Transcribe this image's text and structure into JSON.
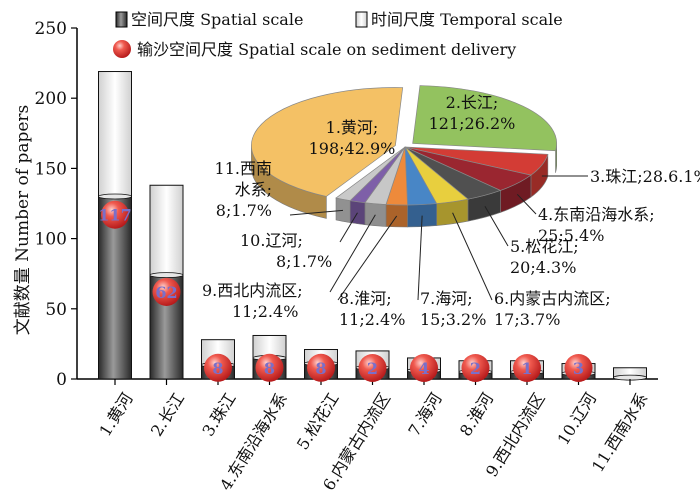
{
  "chart_data": [
    {
      "type": "bar",
      "stacked": true,
      "ylabel": "文献数量 Number of papers",
      "ylim": [
        0,
        250
      ],
      "yticks": [
        0,
        50,
        100,
        150,
        200,
        250
      ],
      "categories": [
        "1.黄河",
        "2.长江",
        "3.珠江",
        "4.东南沿海水系",
        "5.松花江",
        "6.内蒙古内流区",
        "7.海河",
        "8.淮河",
        "9.西北内流区",
        "10.辽河",
        "11.西南水系"
      ],
      "series": [
        {
          "name": "空间尺度 Spatial scale",
          "color": "#333333",
          "values": [
            130,
            74,
            10,
            15,
            11,
            8,
            6,
            5,
            5,
            4,
            1
          ]
        },
        {
          "name": "时间尺度 Temporal scale",
          "color": "#f7f7f7",
          "values": [
            89,
            64,
            18,
            16,
            10,
            12,
            9,
            8,
            8,
            7,
            7
          ]
        }
      ],
      "markers": {
        "name": "输沙空间尺度 Spatial scale on sediment delivery",
        "color": "#e53935",
        "values": [
          117,
          62,
          8,
          8,
          8,
          2,
          4,
          2,
          1,
          3,
          null
        ]
      },
      "legend": "top"
    },
    {
      "type": "pie",
      "labels": [
        "1.黄河",
        "2.长江",
        "3.珠江",
        "4.东南沿海水系",
        "5.松花江",
        "6.内蒙古内流区",
        "7.海河",
        "8.淮河",
        "9.西北内流区",
        "10.辽河",
        "11.西南水系"
      ],
      "values": [
        198,
        121,
        28,
        25,
        20,
        17,
        15,
        11,
        11,
        8,
        8
      ],
      "percents": [
        "42.9%",
        "26.2%",
        "6.1%",
        "5.4%",
        "4.3%",
        "3.7%",
        "3.2%",
        "2.4%",
        "2.4%",
        "1.7%",
        "1.7%"
      ],
      "slice_labels": [
        [
          "1.黄河;",
          "198;42.9%"
        ],
        [
          "2.长江;",
          "121;26.2%"
        ],
        [
          "3.珠江;28.6.1%"
        ],
        [
          "4.东南沿海水系;",
          "25;5.4%"
        ],
        [
          "5.松花江;",
          "20;4.3%"
        ],
        [
          "6.内蒙古内流区;",
          "17;3.7%"
        ],
        [
          "7.海河;",
          "15;3.2%"
        ],
        [
          "8.淮河;",
          "11;2.4%"
        ],
        [
          "9.西北内流区;",
          "11;2.4%"
        ],
        [
          "10.辽河;",
          "8;1.7%"
        ],
        [
          "11.西南",
          "水系;",
          "8;1.7%"
        ]
      ],
      "colors": [
        "#f4c165",
        "#93c25f",
        "#d33c35",
        "#9a2630",
        "#505050",
        "#e8cf3e",
        "#4886c6",
        "#ee8a3b",
        "#c7c7c7",
        "#7e5fa8",
        "#c9c9c9"
      ]
    }
  ]
}
